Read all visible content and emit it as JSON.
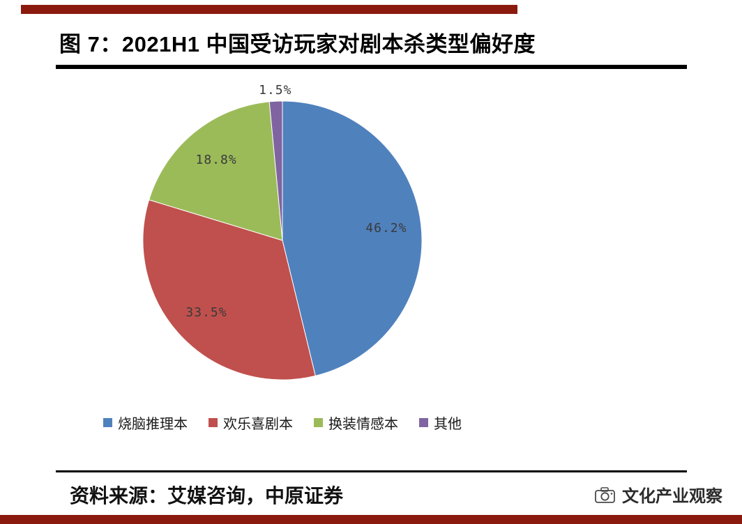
{
  "header": {
    "title": "图 7：2021H1 中国受访玩家对剧本杀类型偏好度"
  },
  "footer": {
    "source_text": "资料来源：艾媒咨询，中原证券",
    "brand_name": "文化产业观察"
  },
  "colors": {
    "accent_bar": "#8B1A0E",
    "rule": "#000000",
    "data_label": "#3A3A3A",
    "background": "#FFFFFF"
  },
  "chart_data": {
    "type": "pie",
    "title": "2021H1 中国受访玩家对剧本杀类型偏好度",
    "start_angle_deg": 0,
    "direction": "clockwise",
    "legend_position": "bottom",
    "slices": [
      {
        "label": "烧脑推理本",
        "value": 46.2,
        "data_label": "46.2%",
        "color": "#4F81BD",
        "label_placement": "inside"
      },
      {
        "label": "欢乐喜剧本",
        "value": 33.5,
        "data_label": "33.5%",
        "color": "#C0504D",
        "label_placement": "inside"
      },
      {
        "label": "换装情感本",
        "value": 18.8,
        "data_label": "18.8%",
        "color": "#9BBB59",
        "label_placement": "inside"
      },
      {
        "label": "其他",
        "value": 1.5,
        "data_label": "1.5%",
        "color": "#8064A2",
        "label_placement": "outside"
      }
    ]
  }
}
